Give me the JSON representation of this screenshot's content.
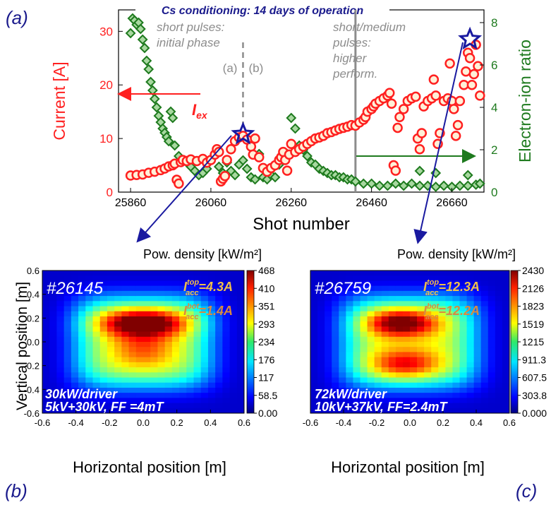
{
  "panel_letters": {
    "a": "(a)",
    "b": "(b)",
    "c": "(c)"
  },
  "colors": {
    "current": "#ff2020",
    "ratio": "#1e7a1e",
    "highlight": "#1a1aa0",
    "note": "#8c8c8c",
    "inset_text": "#f0c04a"
  },
  "chart_data": [
    {
      "type": "scatter",
      "title": "Cs conditioning: 14 days of operation",
      "xlabel": "Shot number",
      "ylabel": "Current [A]",
      "y2label": "Electron-ion ratio",
      "xlim": [
        25830,
        26740
      ],
      "ylim": [
        0,
        34
      ],
      "y2lim": [
        0,
        8.6
      ],
      "xticks": [
        25860,
        26060,
        26260,
        26460,
        26660
      ],
      "yticks": [
        0,
        10,
        20,
        30
      ],
      "y2ticks": [
        0,
        2,
        4,
        6,
        8
      ],
      "annotations": {
        "initial": "short pulses: initial phase",
        "later": "short/medium pulses: higher perform.",
        "mark_a": "(a)",
        "mark_b": "(b)",
        "iex_main": "I",
        "iex_sub": "ex"
      },
      "markers": {
        "dashed_line_x": 26140,
        "solid_line_x": 26420,
        "star_b": [
          26140,
          10.8
        ],
        "star_c": [
          26705,
          28.5
        ]
      },
      "series": [
        {
          "name": "Current",
          "points": [
            [
              25860,
              3.1
            ],
            [
              25875,
              3.2
            ],
            [
              25890,
              3.3
            ],
            [
              25905,
              3.6
            ],
            [
              25920,
              3.8
            ],
            [
              25935,
              4.1
            ],
            [
              25945,
              4.4
            ],
            [
              25955,
              4.8
            ],
            [
              25965,
              5.0
            ],
            [
              25970,
              5.3
            ],
            [
              25975,
              2.3
            ],
            [
              25980,
              1.6
            ],
            [
              25985,
              5.6
            ],
            [
              25990,
              6.0
            ],
            [
              26000,
              5.8
            ],
            [
              26010,
              6.1
            ],
            [
              26025,
              5.8
            ],
            [
              26040,
              6.2
            ],
            [
              26050,
              5.5
            ],
            [
              26060,
              6.0
            ],
            [
              26070,
              7.0
            ],
            [
              26075,
              8.0
            ],
            [
              26080,
              7.5
            ],
            [
              26085,
              2.0
            ],
            [
              26090,
              2.5
            ],
            [
              26095,
              3.0
            ],
            [
              26100,
              6.0
            ],
            [
              26110,
              8.0
            ],
            [
              26120,
              9.5
            ],
            [
              26130,
              10.2
            ],
            [
              26140,
              10.5
            ],
            [
              26150,
              9.8
            ],
            [
              26160,
              8.5
            ],
            [
              26165,
              7.0
            ],
            [
              26170,
              10.0
            ],
            [
              26180,
              6.5
            ],
            [
              26190,
              4.5
            ],
            [
              26200,
              3.8
            ],
            [
              26210,
              4.5
            ],
            [
              26220,
              5.0
            ],
            [
              26230,
              6.0
            ],
            [
              26235,
              6.5
            ],
            [
              26240,
              7.5
            ],
            [
              26245,
              6.0
            ],
            [
              26250,
              4.0
            ],
            [
              26255,
              7.0
            ],
            [
              26260,
              9.0
            ],
            [
              26270,
              7.5
            ],
            [
              26280,
              8.0
            ],
            [
              26290,
              8.5
            ],
            [
              26300,
              9.0
            ],
            [
              26310,
              9.5
            ],
            [
              26320,
              10.0
            ],
            [
              26330,
              10.2
            ],
            [
              26340,
              10.5
            ],
            [
              26350,
              11.0
            ],
            [
              26360,
              11.2
            ],
            [
              26370,
              11.5
            ],
            [
              26380,
              11.8
            ],
            [
              26390,
              12.0
            ],
            [
              26400,
              12.2
            ],
            [
              26410,
              12.5
            ],
            [
              26420,
              12.4
            ],
            [
              26430,
              13.0
            ],
            [
              26440,
              13.5
            ],
            [
              26445,
              14.0
            ],
            [
              26450,
              15.0
            ],
            [
              26460,
              15.5
            ],
            [
              26465,
              16.0
            ],
            [
              26470,
              16.5
            ],
            [
              26480,
              17.0
            ],
            [
              26490,
              17.5
            ],
            [
              26500,
              18.0
            ],
            [
              26505,
              18.5
            ],
            [
              26510,
              16.5
            ],
            [
              26515,
              5.0
            ],
            [
              26520,
              4.0
            ],
            [
              26525,
              12.0
            ],
            [
              26530,
              14.0
            ],
            [
              26540,
              15.5
            ],
            [
              26550,
              17.0
            ],
            [
              26560,
              17.5
            ],
            [
              26570,
              17.8
            ],
            [
              26575,
              10.0
            ],
            [
              26580,
              8.0
            ],
            [
              26585,
              11.0
            ],
            [
              26590,
              16.0
            ],
            [
              26600,
              17.0
            ],
            [
              26610,
              17.5
            ],
            [
              26615,
              21.0
            ],
            [
              26620,
              18.0
            ],
            [
              26625,
              9.0
            ],
            [
              26630,
              11.0
            ],
            [
              26640,
              17.0
            ],
            [
              26650,
              17.5
            ],
            [
              26655,
              24.0
            ],
            [
              26660,
              17.0
            ],
            [
              26665,
              15.5
            ],
            [
              26670,
              10.5
            ],
            [
              26675,
              12.5
            ],
            [
              26680,
              17.0
            ],
            [
              26690,
              20.0
            ],
            [
              26695,
              22.5
            ],
            [
              26700,
              26.0
            ],
            [
              26705,
              25.0
            ],
            [
              26710,
              20.0
            ],
            [
              26715,
              22.0
            ],
            [
              26720,
              27.5
            ],
            [
              26725,
              23.5
            ],
            [
              26730,
              18.0
            ]
          ]
        },
        {
          "name": "Electron-ion ratio",
          "points": [
            [
              25860,
              7.5
            ],
            [
              25865,
              8.2
            ],
            [
              25870,
              8.1
            ],
            [
              25875,
              7.9
            ],
            [
              25880,
              8.0
            ],
            [
              25885,
              7.7
            ],
            [
              25890,
              7.2
            ],
            [
              25895,
              6.8
            ],
            [
              25900,
              6.2
            ],
            [
              25905,
              5.8
            ],
            [
              25910,
              5.2
            ],
            [
              25915,
              4.8
            ],
            [
              25920,
              4.4
            ],
            [
              25925,
              4.0
            ],
            [
              25930,
              3.6
            ],
            [
              25935,
              3.3
            ],
            [
              25940,
              3.0
            ],
            [
              25945,
              2.8
            ],
            [
              25950,
              2.6
            ],
            [
              25955,
              2.4
            ],
            [
              25960,
              3.8
            ],
            [
              25965,
              3.5
            ],
            [
              25970,
              2.2
            ],
            [
              25980,
              1.7
            ],
            [
              25990,
              1.5
            ],
            [
              26000,
              1.4
            ],
            [
              26010,
              1.2
            ],
            [
              26020,
              1.0
            ],
            [
              26030,
              0.8
            ],
            [
              26040,
              0.9
            ],
            [
              26050,
              1.1
            ],
            [
              26060,
              1.5
            ],
            [
              26070,
              1.8
            ],
            [
              26080,
              1.2
            ],
            [
              26090,
              0.9
            ],
            [
              26100,
              1.4
            ],
            [
              26110,
              1.0
            ],
            [
              26120,
              0.8
            ],
            [
              26130,
              1.3
            ],
            [
              26140,
              1.5
            ],
            [
              26150,
              1.1
            ],
            [
              26160,
              0.7
            ],
            [
              26170,
              0.6
            ],
            [
              26180,
              1.8
            ],
            [
              26190,
              0.7
            ],
            [
              26200,
              0.6
            ],
            [
              26210,
              0.8
            ],
            [
              26220,
              0.7
            ],
            [
              26230,
              1.3
            ],
            [
              26240,
              1.6
            ],
            [
              26250,
              1.8
            ],
            [
              26260,
              3.5
            ],
            [
              26270,
              3.0
            ],
            [
              26280,
              2.2
            ],
            [
              26290,
              2.0
            ],
            [
              26300,
              1.7
            ],
            [
              26310,
              1.4
            ],
            [
              26320,
              1.3
            ],
            [
              26330,
              1.1
            ],
            [
              26340,
              1.0
            ],
            [
              26350,
              0.9
            ],
            [
              26360,
              0.8
            ],
            [
              26370,
              0.8
            ],
            [
              26380,
              0.7
            ],
            [
              26390,
              0.7
            ],
            [
              26400,
              0.6
            ],
            [
              26410,
              0.6
            ],
            [
              26420,
              0.5
            ],
            [
              26440,
              0.4
            ],
            [
              26460,
              0.4
            ],
            [
              26480,
              0.3
            ],
            [
              26500,
              0.3
            ],
            [
              26520,
              0.4
            ],
            [
              26540,
              0.3
            ],
            [
              26560,
              0.4
            ],
            [
              26580,
              0.3
            ],
            [
              26600,
              0.3
            ],
            [
              26620,
              0.25
            ],
            [
              26640,
              0.3
            ],
            [
              26660,
              0.25
            ],
            [
              26680,
              0.3
            ],
            [
              26700,
              0.3
            ],
            [
              26720,
              0.35
            ],
            [
              26730,
              0.4
            ],
            [
              26580,
              1.0
            ],
            [
              26620,
              0.9
            ],
            [
              26700,
              0.8
            ]
          ]
        }
      ]
    },
    {
      "type": "heatmap",
      "shot_label": "#26145",
      "xlabel": "Horizontal position [m]",
      "ylabel": "Vertical position [m]",
      "xlim": [
        -0.6,
        0.6
      ],
      "ylim": [
        -0.6,
        0.6
      ],
      "xticks": [
        "-0.6",
        "-0.4",
        "-0.2",
        "0.0",
        "0.2",
        "0.4",
        "0.6"
      ],
      "yticks": [
        "0.6",
        "0.4",
        "0.2",
        "0.0",
        "-0.2",
        "-0.4",
        "-0.6"
      ],
      "colorbar_label": "Pow. density [kW/m²]",
      "colorbar_ticks": [
        "468",
        "410",
        "351",
        "293",
        "234",
        "176",
        "117",
        "58.5",
        "0.00"
      ],
      "vmax": 468,
      "i_top_value": "=4.3A",
      "i_bot_value": "=1.4A",
      "i_top_sup": "top",
      "i_bot_sup": "bot",
      "i_sub": "acc",
      "i_letter": "I",
      "note_line1": "30kW/driver",
      "note_line2": "5kV+30kV, FF =4mT",
      "peak": "top"
    },
    {
      "type": "heatmap",
      "shot_label": "#26759",
      "xlabel": "Horizontal position [m]",
      "xlim": [
        -0.6,
        0.6
      ],
      "ylim": [
        -0.6,
        0.6
      ],
      "xticks": [
        "-0.6",
        "-0.4",
        "-0.2",
        "0.0",
        "0.2",
        "0.4",
        "0.6"
      ],
      "colorbar_label": "Pow. density [kW/m²]",
      "colorbar_ticks": [
        "2430",
        "2126",
        "1823",
        "1519",
        "1215",
        "911.3",
        "607.5",
        "303.8",
        "0.000"
      ],
      "vmax": 2430,
      "i_top_value": "=12.3A",
      "i_bot_value": "=12.2A",
      "i_top_sup": "top",
      "i_bot_sup": "bot",
      "i_sub": "acc",
      "i_letter": "I",
      "note_line1": "72kW/driver",
      "note_line2": "10kV+37kV, FF=2.4mT",
      "peak": "double"
    }
  ]
}
